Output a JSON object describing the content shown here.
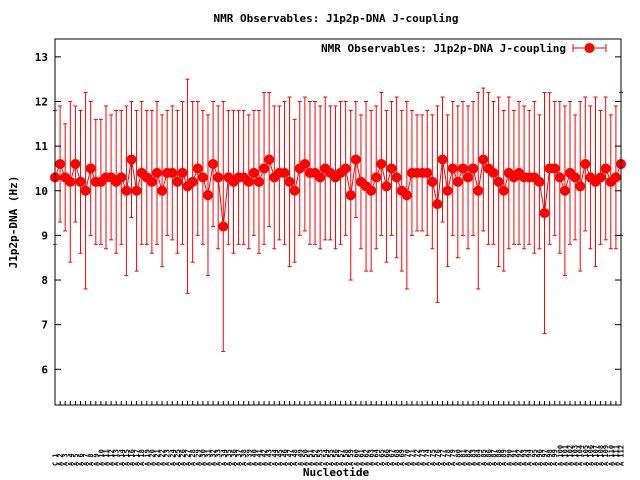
{
  "chart_data": {
    "type": "scatter",
    "title": "NMR Observables: J1p2p-DNA J-coupling",
    "xlabel": "Nucleotide",
    "ylabel": "J1p2p-DNA (Hz)",
    "ylim": [
      5.2,
      13.4
    ],
    "yticks": [
      6,
      7,
      8,
      9,
      10,
      11,
      12,
      13
    ],
    "grid": false,
    "legend_position": "top-right",
    "colors": {
      "series": "#ff0000",
      "frame": "#000000"
    },
    "x_tick_labels": [
      "C 1",
      "A 2",
      "A 3",
      "A 4",
      "A 5",
      "A 6",
      "A 7",
      "A 8",
      "A 9",
      "A 10",
      "A 11",
      "A 12",
      "A 13",
      "A 14",
      "A 15",
      "A 16",
      "A 17",
      "A 18",
      "A 19",
      "A 20",
      "A 21",
      "A 22",
      "A 23",
      "A 24",
      "A 25",
      "A 26",
      "A 27",
      "A 28",
      "A 29",
      "A 30",
      "A 31",
      "A 32",
      "A 33",
      "A 34",
      "A 35",
      "A 36",
      "A 37",
      "A 38",
      "A 39",
      "A 40",
      "A 41",
      "A 42",
      "A 43",
      "A 44",
      "A 45",
      "A 46",
      "A 47",
      "A 48",
      "A 49",
      "A 50",
      "A 51",
      "A 52",
      "A 53",
      "A 54",
      "A 55",
      "A 56",
      "A 57",
      "A 58",
      "A 59",
      "A 60",
      "A 61",
      "A 62",
      "A 63",
      "A 64",
      "A 65",
      "A 66",
      "A 67",
      "A 68",
      "A 69",
      "A 70",
      "A 71",
      "A 72",
      "A 73",
      "A 74",
      "A 75",
      "A 76",
      "A 77",
      "A 78",
      "A 79",
      "A 80",
      "A 81",
      "A 82",
      "A 83",
      "A 84",
      "A 85",
      "A 86",
      "A 87",
      "A 88",
      "A 89",
      "A 90",
      "A 91",
      "A 92",
      "A 93",
      "A 94",
      "A 95",
      "A 96",
      "A 97",
      "A 98",
      "A 99",
      "A 100",
      "A 101",
      "A 102",
      "A 103",
      "A 104",
      "A 105",
      "A 106",
      "A 107",
      "A 108",
      "A 109",
      "A 110",
      "A 111",
      "A 112"
    ],
    "series": [
      {
        "name": "NMR Observables: J1p2p-DNA J-coupling",
        "values": [
          10.3,
          10.6,
          10.3,
          10.2,
          10.6,
          10.2,
          10.0,
          10.5,
          10.2,
          10.2,
          10.3,
          10.3,
          10.2,
          10.3,
          10.0,
          10.7,
          10.0,
          10.4,
          10.3,
          10.2,
          10.4,
          10.0,
          10.4,
          10.4,
          10.2,
          10.4,
          10.1,
          10.2,
          10.5,
          10.3,
          9.9,
          10.6,
          10.3,
          9.2,
          10.3,
          10.2,
          10.3,
          10.3,
          10.2,
          10.4,
          10.2,
          10.5,
          10.7,
          10.3,
          10.4,
          10.4,
          10.2,
          10.0,
          10.5,
          10.6,
          10.4,
          10.4,
          10.3,
          10.5,
          10.4,
          10.3,
          10.4,
          10.5,
          9.9,
          10.7,
          10.2,
          10.1,
          10.0,
          10.3,
          10.6,
          10.1,
          10.5,
          10.3,
          10.0,
          9.9,
          10.4,
          10.4,
          10.4,
          10.4,
          10.2,
          9.7,
          10.7,
          10.0,
          10.5,
          10.2,
          10.5,
          10.3,
          10.5,
          10.0,
          10.7,
          10.5,
          10.4,
          10.2,
          10.0,
          10.4,
          10.3,
          10.4,
          10.3,
          10.3,
          10.3,
          10.2,
          9.5,
          10.5,
          10.5,
          10.3,
          10.0,
          10.4,
          10.3,
          10.1,
          10.6,
          10.3,
          10.2,
          10.3,
          10.5,
          10.2,
          10.3,
          10.6
        ],
        "errors": [
          1.5,
          1.3,
          1.2,
          1.8,
          1.3,
          1.6,
          2.2,
          1.5,
          1.4,
          1.4,
          1.6,
          1.4,
          1.6,
          1.5,
          1.9,
          1.3,
          1.8,
          1.6,
          1.5,
          1.6,
          1.6,
          1.7,
          1.4,
          1.5,
          1.6,
          1.6,
          2.4,
          1.8,
          1.5,
          1.5,
          1.8,
          1.4,
          1.6,
          2.8,
          1.5,
          1.6,
          1.5,
          1.5,
          1.5,
          1.4,
          1.6,
          1.7,
          1.5,
          1.6,
          1.5,
          1.6,
          1.9,
          1.6,
          1.5,
          1.5,
          1.6,
          1.6,
          1.6,
          1.6,
          1.5,
          1.6,
          1.6,
          1.5,
          1.9,
          1.3,
          1.5,
          1.9,
          1.8,
          1.6,
          1.6,
          1.7,
          1.5,
          1.8,
          1.8,
          2.1,
          1.4,
          1.3,
          1.3,
          1.4,
          1.5,
          2.2,
          1.4,
          1.7,
          1.5,
          1.7,
          1.5,
          1.6,
          1.5,
          2.2,
          1.6,
          1.7,
          1.6,
          1.9,
          1.8,
          1.7,
          1.5,
          1.6,
          1.6,
          1.5,
          1.7,
          1.5,
          2.7,
          1.7,
          1.5,
          1.7,
          1.9,
          1.6,
          1.4,
          1.9,
          1.5,
          1.6,
          1.9,
          1.5,
          1.6,
          1.5,
          1.6,
          1.6
        ]
      }
    ]
  }
}
